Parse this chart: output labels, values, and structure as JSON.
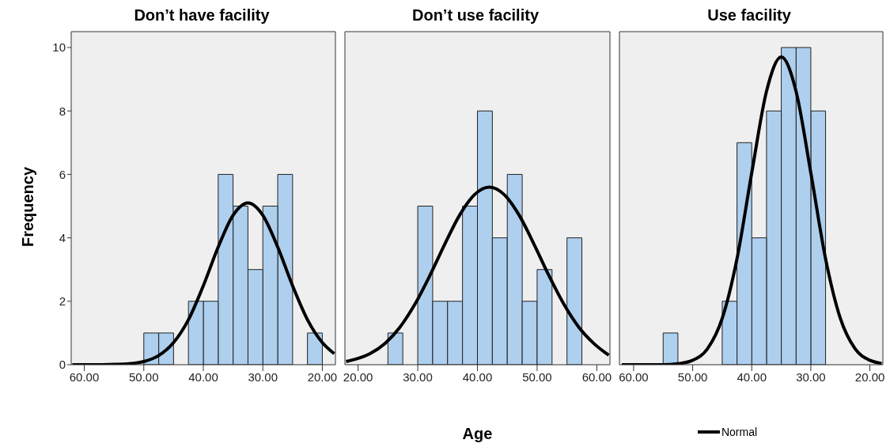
{
  "chart_data": [
    {
      "type": "histogram",
      "title": "Don’t have facility",
      "ylabel": "Frequency",
      "bins": [
        20,
        22.5,
        25,
        27.5,
        30,
        32.5,
        35,
        37.5,
        40,
        42.5,
        45,
        47.5,
        50
      ],
      "values": [
        1,
        0,
        6,
        5,
        3,
        5,
        6,
        2,
        2,
        0,
        1,
        1
      ],
      "color": "#aecfee",
      "series": [
        {
          "type": "line",
          "color": "#000000",
          "x": [
            18,
            20,
            22.5,
            25,
            27.5,
            30,
            32.5,
            35,
            37.5,
            40,
            42.5,
            45,
            47.5,
            50,
            52.5,
            55,
            57.5,
            60,
            62
          ],
          "values": [
            0.35,
            0.7,
            1.42,
            2.49,
            3.71,
            4.71,
            5.1,
            4.71,
            3.71,
            2.49,
            1.42,
            0.7,
            0.29,
            0.1,
            0.03,
            0.01,
            0,
            0,
            0
          ]
        }
      ],
      "xlim": [
        62.2,
        17.8
      ],
      "xticks": [
        {
          "value": 60,
          "label": "60.00"
        },
        {
          "value": 50,
          "label": "50.00"
        },
        {
          "value": 40,
          "label": "40.00"
        },
        {
          "value": 30,
          "label": "30.00"
        },
        {
          "value": 20,
          "label": "20.00"
        }
      ],
      "ylim": [
        0,
        10.5
      ],
      "yticks": [
        0,
        2,
        4,
        6,
        8,
        10
      ],
      "grid": false,
      "legend": false,
      "marker": "none"
    },
    {
      "type": "histogram",
      "title": "Don’t use facility",
      "xlabel": "Age",
      "bins": [
        25,
        27.5,
        30,
        32.5,
        35,
        37.5,
        40,
        42.5,
        45,
        47.5,
        50,
        52.5,
        55,
        57.5
      ],
      "values": [
        1,
        0,
        5,
        2,
        2,
        5,
        8,
        4,
        6,
        2,
        3,
        0,
        4
      ],
      "color": "#aecfee",
      "series": [
        {
          "type": "line",
          "color": "#000000",
          "x": [
            18,
            19.5,
            22,
            24.5,
            27,
            29.5,
            32,
            34.5,
            37,
            39.5,
            42,
            44.5,
            47,
            49.5,
            52,
            54.5,
            57,
            59.5,
            62
          ],
          "values": [
            0.1,
            0.17,
            0.35,
            0.67,
            1.18,
            1.9,
            2.8,
            3.79,
            4.71,
            5.36,
            5.6,
            5.36,
            4.71,
            3.79,
            2.8,
            1.9,
            1.18,
            0.67,
            0.3
          ]
        }
      ],
      "xlim": [
        17.8,
        62.2
      ],
      "xticks": [
        {
          "value": 20,
          "label": "20.00"
        },
        {
          "value": 30,
          "label": "30.00"
        },
        {
          "value": 40,
          "label": "40.00"
        },
        {
          "value": 50,
          "label": "50.00"
        },
        {
          "value": 60,
          "label": "60.00"
        }
      ],
      "ylim": [
        0,
        10.5
      ],
      "yticks": [
        0,
        2,
        4,
        6,
        8,
        10
      ],
      "tick_labels": "x",
      "grid": false,
      "legend": false,
      "marker": "none"
    },
    {
      "type": "histogram",
      "title": "Use facility",
      "bins": [
        27.5,
        30,
        32.5,
        35,
        37.5,
        40,
        42.5,
        45,
        47.5,
        50,
        52.5,
        55
      ],
      "values": [
        8,
        10,
        10,
        8,
        4,
        7,
        2,
        0,
        0,
        0,
        1
      ],
      "color": "#aecfee",
      "series": [
        {
          "type": "line",
          "name": "Normal",
          "color": "#000000",
          "x": [
            18,
            20,
            22.5,
            25,
            27.5,
            30,
            32.5,
            35,
            37.5,
            40,
            42.5,
            45,
            47.5,
            50,
            52.5,
            55,
            57.5,
            60,
            62
          ],
          "values": [
            0.04,
            0.14,
            0.5,
            1.46,
            3.34,
            6.05,
            8.62,
            9.7,
            8.62,
            6.05,
            3.34,
            1.46,
            0.5,
            0.14,
            0.03,
            0,
            0,
            0,
            0
          ]
        }
      ],
      "xlim": [
        62.4,
        17.8
      ],
      "xticks": [
        {
          "value": 60,
          "label": "60.00"
        },
        {
          "value": 50,
          "label": "50.00"
        },
        {
          "value": 40,
          "label": "40.00"
        },
        {
          "value": 30,
          "label": "30.00"
        },
        {
          "value": 20,
          "label": "20.00"
        }
      ],
      "ylim": [
        0,
        10.5
      ],
      "yticks": [
        0,
        2,
        4,
        6,
        8,
        10
      ],
      "tick_labels": "x",
      "grid": false,
      "legend": "bottom",
      "marker": "none"
    }
  ]
}
